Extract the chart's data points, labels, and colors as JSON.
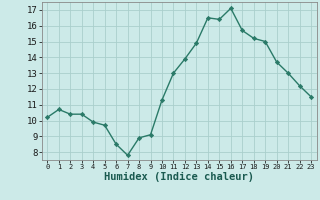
{
  "x": [
    0,
    1,
    2,
    3,
    4,
    5,
    6,
    7,
    8,
    9,
    10,
    11,
    12,
    13,
    14,
    15,
    16,
    17,
    18,
    19,
    20,
    21,
    22,
    23
  ],
  "y": [
    10.2,
    10.7,
    10.4,
    10.4,
    9.9,
    9.7,
    8.5,
    7.8,
    8.9,
    9.1,
    11.3,
    13.0,
    13.9,
    14.9,
    16.5,
    16.4,
    17.1,
    15.7,
    15.2,
    15.0,
    13.7,
    13.0,
    12.2,
    11.5
  ],
  "line_color": "#2a7a68",
  "marker": "D",
  "markersize": 2.2,
  "linewidth": 1.0,
  "bg_color": "#cceae8",
  "grid_color": "#aacfcc",
  "xlabel": "Humidex (Indice chaleur)",
  "ylim": [
    7.5,
    17.5
  ],
  "xlim": [
    -0.5,
    23.5
  ],
  "yticks": [
    8,
    9,
    10,
    11,
    12,
    13,
    14,
    15,
    16,
    17
  ],
  "xticks": [
    0,
    1,
    2,
    3,
    4,
    5,
    6,
    7,
    8,
    9,
    10,
    11,
    12,
    13,
    14,
    15,
    16,
    17,
    18,
    19,
    20,
    21,
    22,
    23
  ],
  "xlabel_fontsize": 7.5,
  "ytick_fontsize": 6.5,
  "xtick_fontsize": 5.0
}
